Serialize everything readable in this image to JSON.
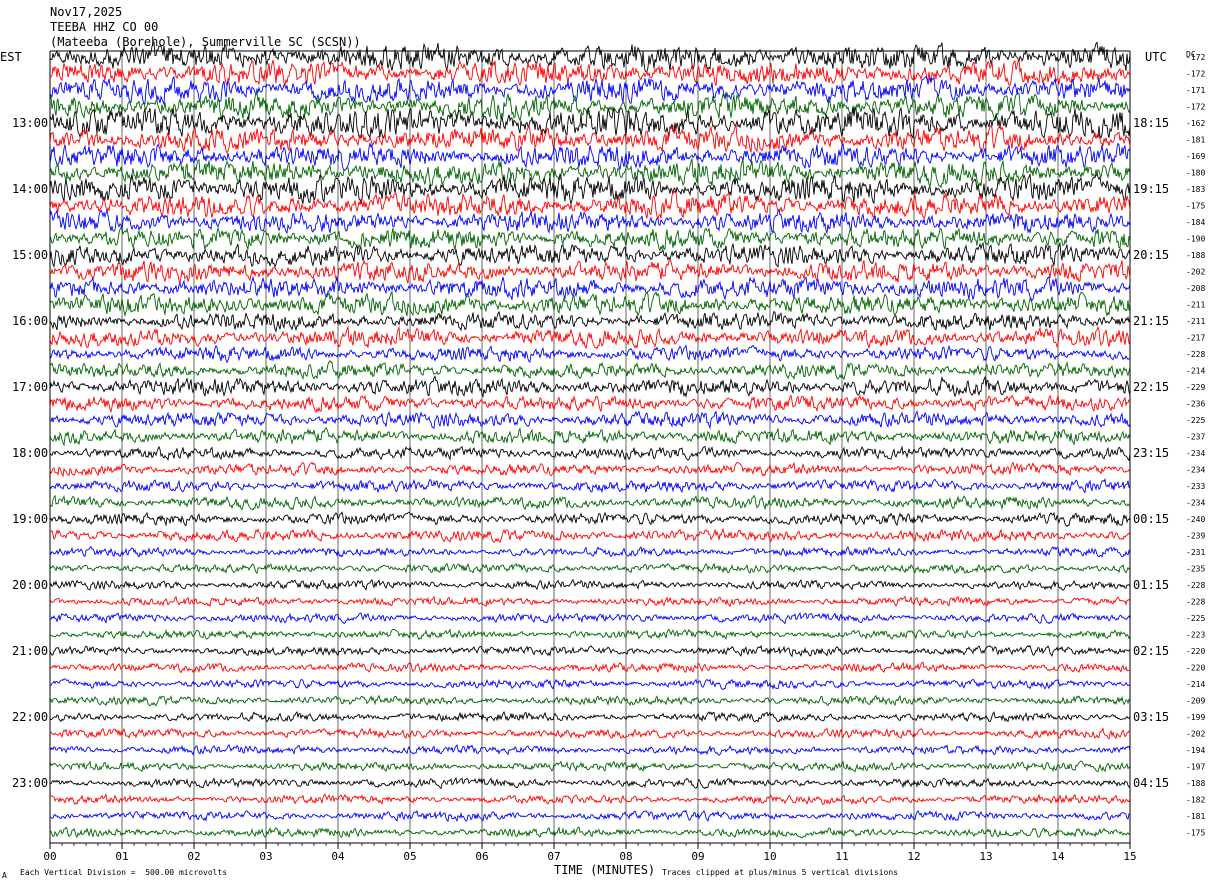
{
  "header": {
    "date": "Nov17,2025",
    "station": "TEEBA HHZ CO 00",
    "location": "(Mateeba (Borehole), Summerville SC (SCSN))"
  },
  "left_axis_label": "EST",
  "right_axis_label": "UTC",
  "dc_label": "DC",
  "footer": {
    "scale_note": "Each Vertical Division =  500.00 microvolts",
    "xlabel": "TIME (MINUTES)",
    "clip_note": "Traces clipped at plus/minus 5 vertical divisions",
    "corner_mark": "A"
  },
  "chart_data": {
    "type": "line",
    "title": "TEEBA HHZ CO 00",
    "xlabel": "TIME (MINUTES)",
    "ylabel": "",
    "x_ticks": [
      "00",
      "01",
      "02",
      "03",
      "04",
      "05",
      "06",
      "07",
      "08",
      "09",
      "10",
      "11",
      "12",
      "13",
      "14",
      "15"
    ],
    "xlim": [
      0,
      15
    ],
    "grid": true,
    "trace_colors": [
      "#000000",
      "#ff0000",
      "#0000ff",
      "#006400"
    ],
    "left_hour_labels": [
      "13:00",
      "14:00",
      "15:00",
      "16:00",
      "17:00",
      "18:00",
      "19:00",
      "20:00",
      "21:00",
      "22:00",
      "23:00"
    ],
    "right_hour_labels": [
      "18:15",
      "19:15",
      "20:15",
      "21:15",
      "22:15",
      "23:15",
      "00:15",
      "01:15",
      "02:15",
      "03:15",
      "04:15"
    ],
    "dc_offsets": [
      -172,
      -172,
      -171,
      -172,
      -162,
      -181,
      -169,
      -180,
      -183,
      -175,
      -184,
      -190,
      -188,
      -202,
      -208,
      -211,
      -211,
      -217,
      -228,
      -214,
      -229,
      -236,
      -225,
      -237,
      -234,
      -234,
      -233,
      -234,
      -240,
      -239,
      -231,
      -235,
      -228,
      -228,
      -225,
      -223,
      -220,
      -220,
      -214,
      -209,
      -199,
      -202,
      -194,
      -197,
      -188,
      -182,
      -181,
      -175
    ],
    "trace_amplitudes": [
      9,
      8,
      8,
      8,
      10,
      8,
      8,
      8,
      9,
      8,
      7,
      7,
      7,
      7,
      7,
      7,
      6,
      6,
      5,
      5,
      6,
      5,
      5,
      5,
      4,
      4,
      4,
      4,
      4,
      4,
      3,
      3,
      3,
      3,
      3,
      3,
      3,
      3,
      3,
      3,
      3,
      3,
      3,
      3,
      3,
      3,
      3,
      3
    ]
  }
}
